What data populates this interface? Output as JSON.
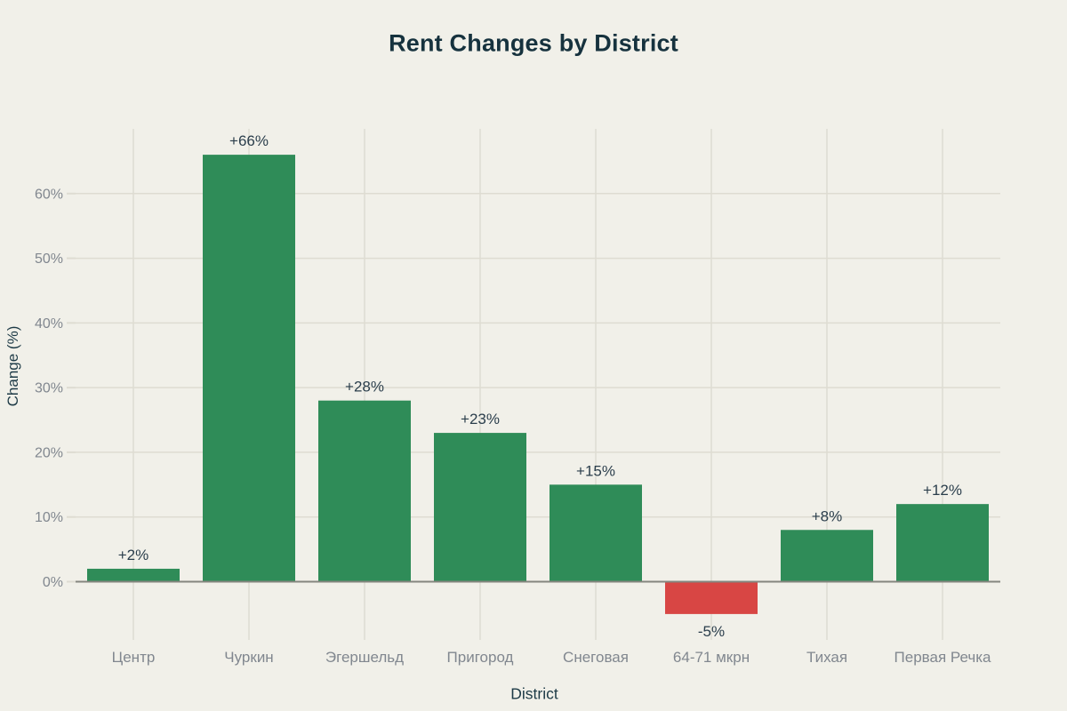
{
  "page": {
    "background": "#f1f0e9"
  },
  "chart_data": {
    "type": "bar",
    "title": "Rent Changes by District",
    "xlabel": "District",
    "ylabel": "Change (%)",
    "categories": [
      "Центр",
      "Чуркин",
      "Эгершельд",
      "Пригород",
      "Снеговая",
      "64-71 мкрн",
      "Тихая",
      "Первая Речка"
    ],
    "values": [
      2,
      66,
      28,
      23,
      15,
      -5,
      8,
      12
    ],
    "value_labels": [
      "+2%",
      "+66%",
      "+28%",
      "+23%",
      "+15%",
      "-5%",
      "+8%",
      "+12%"
    ],
    "yticks": [
      0,
      10,
      20,
      30,
      40,
      50,
      60
    ],
    "ytick_labels": [
      "0%",
      "10%",
      "20%",
      "30%",
      "40%",
      "50%",
      "60%"
    ],
    "ylim": [
      -9,
      70
    ],
    "grid": true,
    "legend": "none",
    "colors": {
      "positive_bar": "#2f8c58",
      "negative_bar": "#d84644",
      "grid_line": "#dedcd2",
      "zero_line": "#85867f",
      "tick_text": "#81878f",
      "value_text": "#2b3e4c",
      "title_text": "#16323e",
      "axis_title_text": "#1d3a46",
      "background": "#f1f0e9"
    }
  }
}
